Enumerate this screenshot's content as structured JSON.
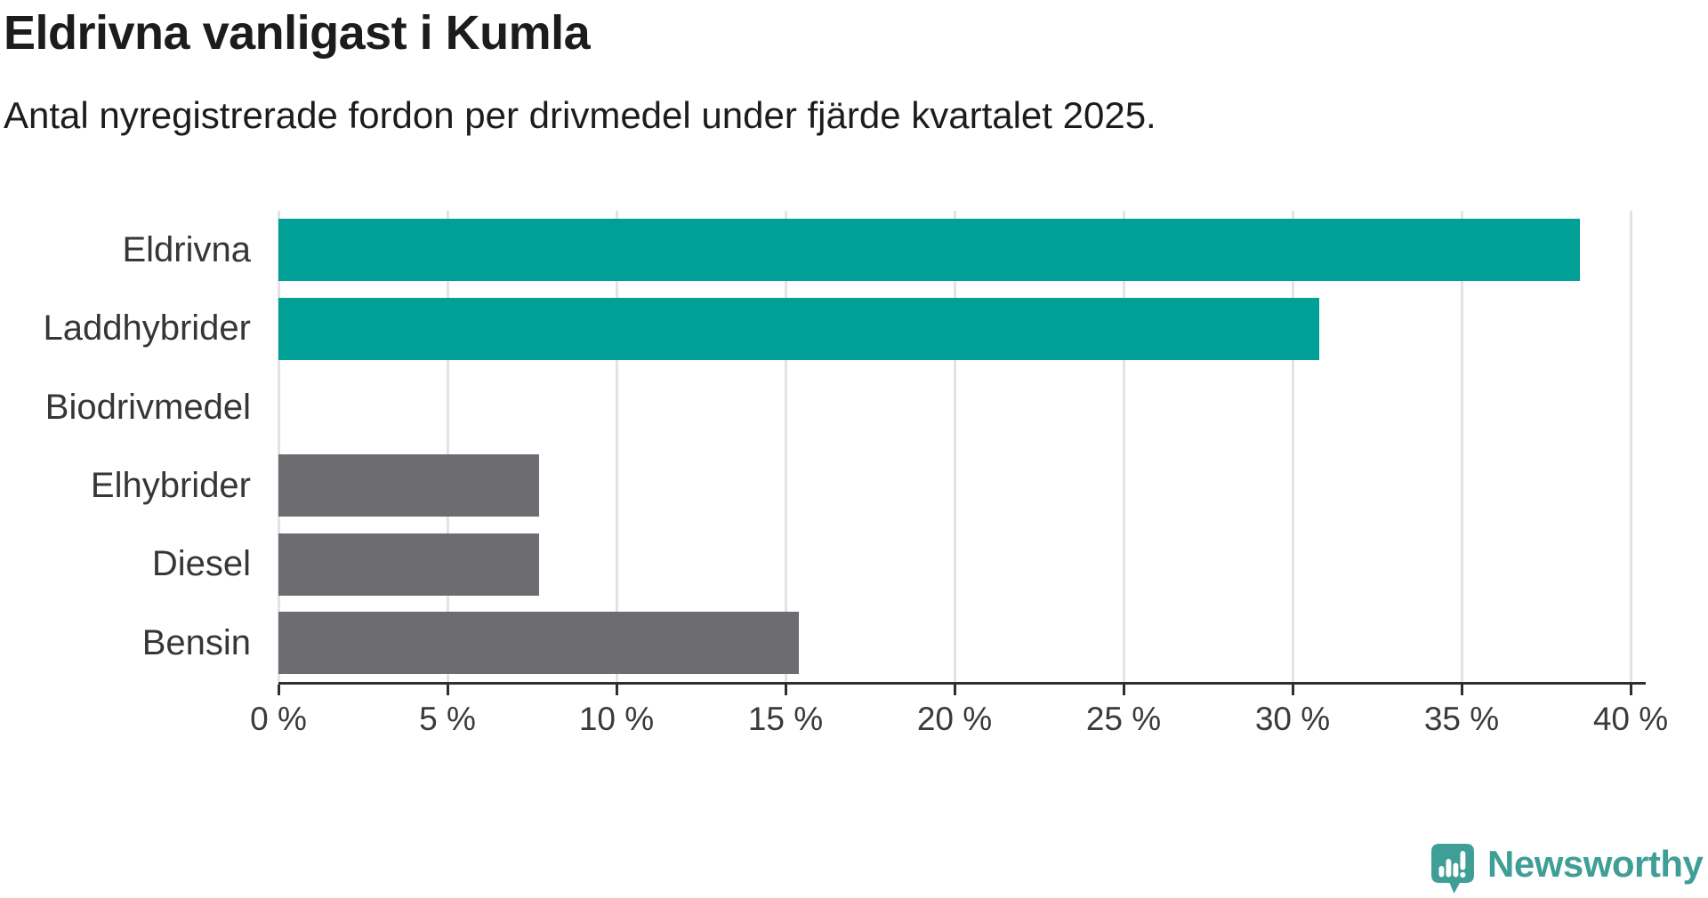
{
  "page": {
    "background": "#FFFFFF"
  },
  "header": {
    "title": "Eldrivna vanligast i Kumla",
    "subtitle": "Antal nyregistrerade fordon per drivmedel under fjärde kvartalet 2025."
  },
  "chart_data": {
    "type": "bar",
    "orientation": "horizontal",
    "title": "Eldrivna vanligast i Kumla",
    "subtitle": "Antal nyregistrerade fordon per drivmedel under fjärde kvartalet 2025.",
    "categories": [
      "Eldrivna",
      "Laddhybrider",
      "Biodrivmedel",
      "Elhybrider",
      "Diesel",
      "Bensin"
    ],
    "values": [
      38.5,
      30.8,
      0,
      7.7,
      7.7,
      15.4
    ],
    "bar_colors": [
      "#00A096",
      "#00A096",
      "#6D6D71",
      "#6D6D71",
      "#6D6D71",
      "#6D6D71"
    ],
    "xlim": [
      0,
      40
    ],
    "x_tick_step": 5,
    "x_tick_labels": [
      "0 %",
      "5 %",
      "10 %",
      "15 %",
      "20 %",
      "25 %",
      "30 %",
      "35 %",
      "40 %"
    ],
    "xlabel": "",
    "ylabel": "",
    "grid": "vertical",
    "legend": "none"
  },
  "colors": {
    "accent_teal": "#00A096",
    "muted_gray": "#6D6D71",
    "gridline": "#E3E3E3",
    "axis_line": "#2F2F2F",
    "title_text": "#1C1C1C",
    "label_text": "#3A3A3A",
    "logo_teal": "#3F9F97"
  },
  "footer": {
    "brand": "Newsworthy"
  }
}
